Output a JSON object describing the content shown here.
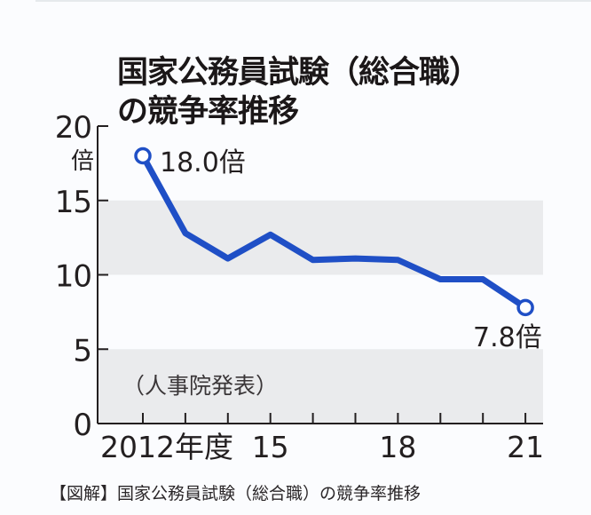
{
  "title": {
    "line1": "国家公務員試験（総合職）",
    "line2": "の競争率推移"
  },
  "source_note": "（人事院発表）",
  "caption": "【図解】国家公務員試験（総合職）の競争率推移",
  "y_unit": "倍",
  "annotations": {
    "start": "18.0倍",
    "end": "7.8倍"
  },
  "colors": {
    "line": "#1f4fc6",
    "band": "#eaebed",
    "axis": "#231f20",
    "background": "#fbfcfe"
  },
  "chart_data": {
    "type": "line",
    "title": "国家公務員試験（総合職）の競争率推移",
    "xlabel": "年度",
    "ylabel": "倍",
    "x": [
      2012,
      2013,
      2014,
      2015,
      2016,
      2017,
      2018,
      2019,
      2020,
      2021
    ],
    "x_tick_labels": [
      "2012年度",
      "",
      "",
      "15",
      "",
      "",
      "18",
      "",
      "",
      "21"
    ],
    "series": [
      {
        "name": "競争率",
        "values": [
          18.0,
          12.8,
          11.1,
          12.7,
          11.0,
          11.1,
          11.0,
          9.7,
          9.7,
          7.8
        ]
      }
    ],
    "y_ticks": [
      0,
      5,
      10,
      15,
      20
    ],
    "ylim": [
      0,
      20
    ],
    "grid": false,
    "bands": [
      [
        0,
        5
      ],
      [
        10,
        15
      ]
    ],
    "data_labels": [
      {
        "x": 2012,
        "label": "18.0倍"
      },
      {
        "x": 2021,
        "label": "7.8倍"
      }
    ],
    "source": "（人事院発表）"
  }
}
